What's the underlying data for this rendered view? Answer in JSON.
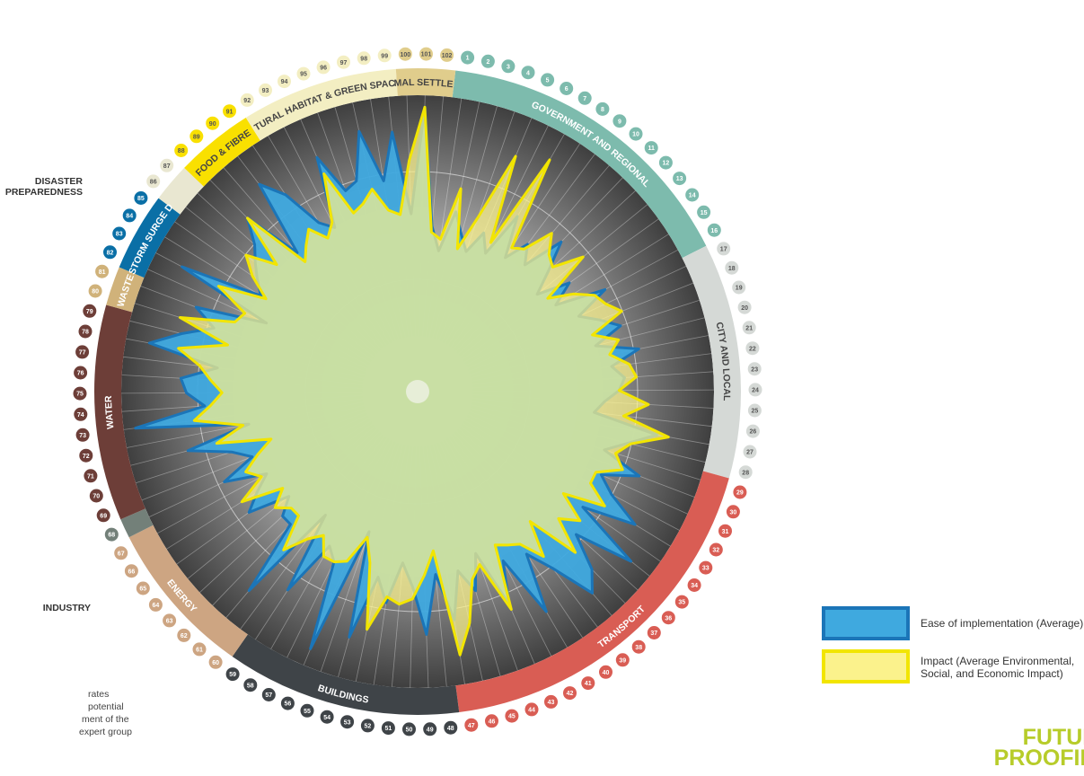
{
  "chart_data": {
    "type": "radar",
    "categories": [
      "1",
      "2",
      "3",
      "4",
      "5",
      "6",
      "7",
      "8",
      "9",
      "10",
      "11",
      "12",
      "13",
      "14",
      "15",
      "16",
      "17",
      "18",
      "19",
      "20",
      "21",
      "22",
      "23",
      "24",
      "25",
      "26",
      "27",
      "28",
      "29",
      "30",
      "31",
      "32",
      "33",
      "34",
      "35",
      "36",
      "37",
      "38",
      "39",
      "40",
      "41",
      "42",
      "43",
      "44",
      "45",
      "46",
      "47",
      "48",
      "49",
      "50",
      "51",
      "52",
      "53",
      "54",
      "55",
      "56",
      "57",
      "58",
      "59",
      "60",
      "61",
      "62",
      "63",
      "64",
      "65",
      "66",
      "67",
      "68",
      "69",
      "70",
      "71",
      "72",
      "73",
      "74",
      "75",
      "76",
      "77",
      "78",
      "79",
      "80",
      "81",
      "82",
      "83",
      "84",
      "85",
      "86",
      "87",
      "88",
      "89",
      "90",
      "91",
      "92",
      "93",
      "94",
      "95",
      "96",
      "97",
      "98",
      "99",
      "100",
      "101",
      "102"
    ],
    "rlim": [
      0,
      1
    ],
    "series": [
      {
        "name": "Ease of implementation (Average)",
        "color": "#3fa9df",
        "stroke": "#1b75b8",
        "values": [
          0.48,
          0.62,
          0.55,
          0.5,
          0.58,
          0.52,
          0.68,
          0.54,
          0.62,
          0.56,
          0.7,
          0.6,
          0.52,
          0.63,
          0.55,
          0.72,
          0.6,
          0.66,
          0.72,
          0.62,
          0.76,
          0.66,
          0.7,
          0.68,
          0.63,
          0.6,
          0.82,
          0.73,
          0.66,
          0.8,
          0.68,
          0.74,
          0.86,
          0.68,
          0.92,
          0.72,
          0.84,
          0.9,
          0.75,
          0.66,
          0.86,
          0.64,
          0.78,
          0.58,
          0.7,
          0.62,
          0.78,
          0.62,
          0.82,
          0.66,
          0.58,
          0.72,
          0.64,
          0.86,
          0.5,
          0.94,
          0.64,
          0.6,
          0.8,
          0.52,
          0.88,
          0.62,
          0.62,
          0.56,
          0.7,
          0.64,
          0.58,
          0.72,
          0.6,
          0.66,
          0.8,
          0.58,
          0.96,
          0.72,
          0.78,
          0.8,
          0.68,
          0.92,
          0.82,
          0.72,
          0.8,
          0.56,
          0.9,
          0.62,
          0.66,
          0.7,
          0.74,
          0.82,
          0.62,
          0.88,
          0.8,
          0.66,
          0.62,
          0.86,
          0.72,
          0.74,
          0.9,
          0.72,
          0.88,
          0.6,
          0.96,
          0.56
        ]
      },
      {
        "name": "Impact (Average Environmental, Social, and Economic Impact)",
        "color": "#fbf28c",
        "stroke": "#f2e500",
        "values": [
          0.52,
          0.7,
          0.5,
          0.62,
          0.86,
          0.56,
          0.9,
          0.58,
          0.6,
          0.7,
          0.64,
          0.62,
          0.72,
          0.54,
          0.62,
          0.68,
          0.7,
          0.74,
          0.62,
          0.7,
          0.66,
          0.72,
          0.74,
          0.68,
          0.78,
          0.7,
          0.86,
          0.74,
          0.7,
          0.74,
          0.66,
          0.66,
          0.74,
          0.6,
          0.7,
          0.64,
          0.76,
          0.58,
          0.7,
          0.62,
          0.6,
          0.58,
          0.8,
          0.62,
          0.66,
          0.8,
          0.9,
          0.54,
          0.62,
          0.7,
          0.72,
          0.7,
          0.82,
          0.6,
          0.52,
          0.62,
          0.64,
          0.64,
          0.58,
          0.62,
          0.7,
          0.58,
          0.58,
          0.62,
          0.56,
          0.7,
          0.6,
          0.64,
          0.58,
          0.52,
          0.7,
          0.6,
          0.76,
          0.7,
          0.66,
          0.7,
          0.74,
          0.82,
          0.66,
          0.84,
          0.66,
          0.64,
          0.76,
          0.6,
          0.68,
          0.74,
          0.64,
          0.82,
          0.58,
          0.62,
          0.66,
          0.6,
          0.64,
          0.8,
          0.64,
          0.66,
          0.7,
          0.62,
          0.6,
          0.78,
          0.96,
          0.54
        ]
      }
    ],
    "sectors": [
      {
        "label": "GOVERNMENT AND REGIONAL",
        "start": 1,
        "end": 16,
        "color": "#7dbbad"
      },
      {
        "label": "CITY AND LOCAL",
        "start": 17,
        "end": 28,
        "color": "#d5d9d6"
      },
      {
        "label": "TRANSPORT",
        "start": 29,
        "end": 47,
        "color": "#d95d54"
      },
      {
        "label": "BUILDINGS",
        "start": 48,
        "end": 59,
        "color": "#3f4448"
      },
      {
        "label": "ENERGY",
        "start": 60,
        "end": 67,
        "color": "#cda582"
      },
      {
        "label": "INDUSTRY",
        "start": 68,
        "end": 68,
        "color": "#738079"
      },
      {
        "label": "WATER",
        "start": 69,
        "end": 79,
        "color": "#6d3e38"
      },
      {
        "label": "WASTE",
        "start": 80,
        "end": 81,
        "color": "#d0b27a"
      },
      {
        "label": "FLOOD & STORM SURGE DEFENCES",
        "start": 82,
        "end": 85,
        "color": "#0a6fa6"
      },
      {
        "label": "DISASTER PREPAREDNESS",
        "start": 86,
        "end": 87,
        "color": "#e9e7d1"
      },
      {
        "label": "FOOD & FIBRE",
        "start": 88,
        "end": 91,
        "color": "#f9e000"
      },
      {
        "label": "NATURAL HABITAT & GREEN SPACES",
        "start": 92,
        "end": 99,
        "color": "#f3eec2"
      },
      {
        "label": "INFORMAL SETTLEMENTS",
        "start": 100,
        "end": 102,
        "color": "#e0cd8c"
      }
    ]
  },
  "labels": {
    "disaster_line1": "DISASTER",
    "disaster_line2": "PREPAREDNESS",
    "industry": "INDUSTRY"
  },
  "legend": {
    "ease": "Ease of implementation (Average)",
    "impact_line1": "Impact (Average Environmental,",
    "impact_line2": "Social, and Economic Impact)"
  },
  "note": {
    "line1": "rates potential",
    "line2": "ment of the",
    "line3": "expert group"
  },
  "brand": {
    "line1": "FUTURE",
    "line2": "PROOFING"
  }
}
